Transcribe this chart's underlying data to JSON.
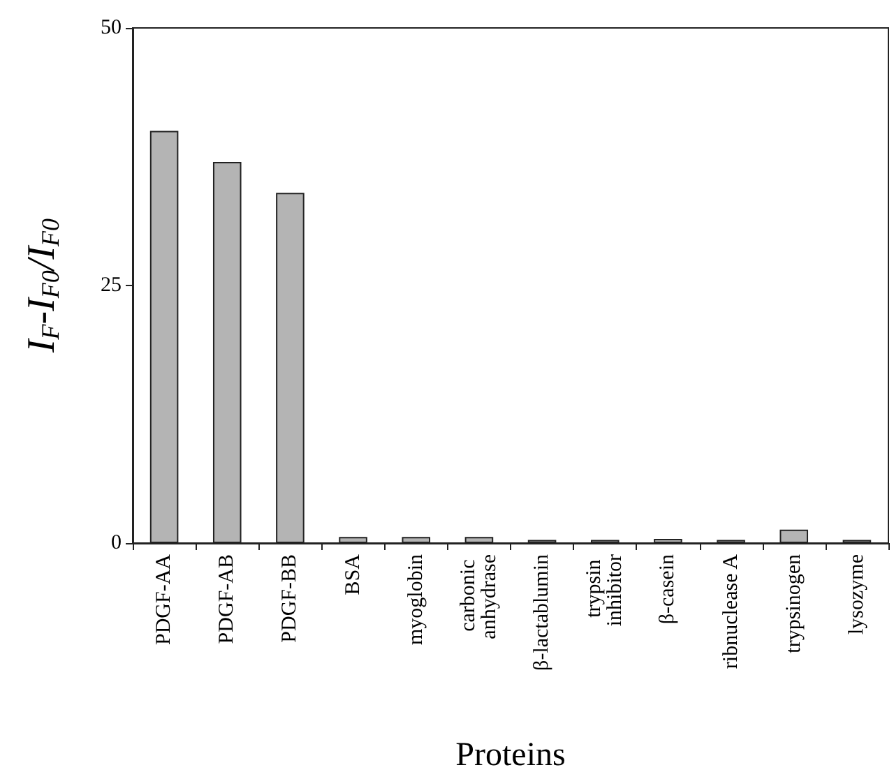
{
  "chart_data": {
    "type": "bar",
    "xlabel": "Proteins",
    "ylabel": "I$_{F}$-I$_{F0}$/I$_{F0}$",
    "categories": [
      "PDGF-AA",
      "PDGF-AB",
      "PDGF-BB",
      "BSA",
      "myoglobin",
      "carbonic anhydrase",
      "β-lactablumin",
      "trypsin inhibitor",
      "β-casein",
      "ribnuclease A",
      "trypsinogen",
      "lysozyme"
    ],
    "values": [
      40,
      37,
      34,
      0.6,
      0.6,
      0.6,
      0.3,
      0.3,
      0.4,
      0.3,
      1.3,
      0.3
    ],
    "color": "#b4b4b4",
    "ylim": [
      0,
      50
    ],
    "yticks": [
      0,
      25,
      50
    ],
    "grid": false
  }
}
